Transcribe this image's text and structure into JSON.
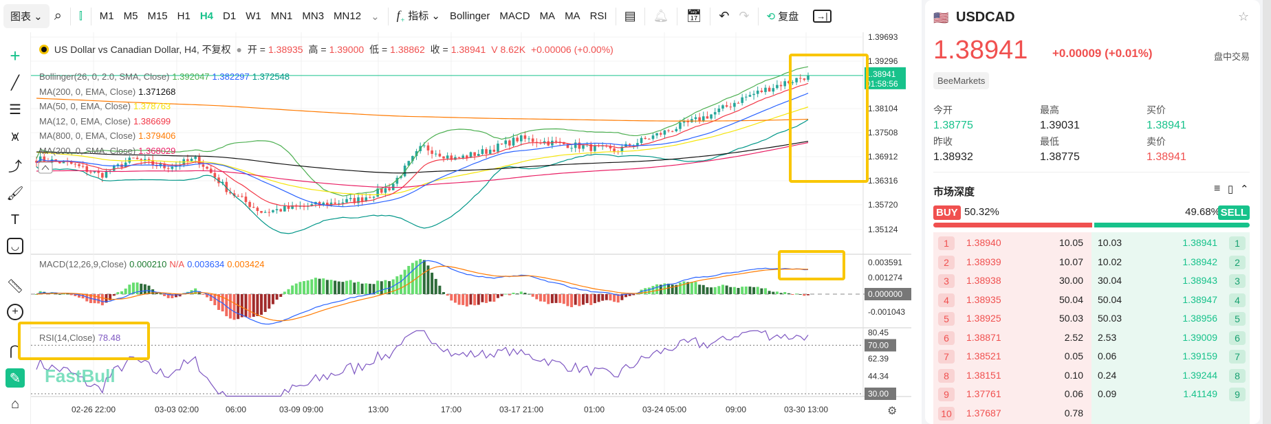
{
  "toolbar": {
    "chart_menu": "图表 ⌄",
    "timeframes": [
      "M1",
      "M5",
      "M15",
      "H1",
      "H4",
      "D1",
      "W1",
      "MN1",
      "MN3",
      "MN12"
    ],
    "active": "H4",
    "indicators_label": "指标 ⌄",
    "quick_indicators": [
      "Bollinger",
      "MACD",
      "MA",
      "MA",
      "RSI"
    ],
    "replay_label": "复盘"
  },
  "legend": {
    "title": "US Dollar vs Canadian Dollar, H4, 不复权",
    "open_label": "开 =",
    "open": "1.38935",
    "high_label": "高 =",
    "high": "1.39000",
    "low_label": "低 =",
    "low": "1.38862",
    "close_label": "收 =",
    "close": "1.38941",
    "volume": "V 8.62K",
    "change": "+0.00006 (+0.00%)",
    "indicators": [
      {
        "name": "Bollinger(26, 0, 2.0, SMA, Close)",
        "values": [
          "1.392047",
          "1.382297",
          "1.372548"
        ],
        "colors": [
          "#4caf50",
          "#2962ff",
          "#009688"
        ]
      },
      {
        "name": "MA(200, 0, EMA, Close)",
        "values": [
          "1.371268"
        ],
        "colors": [
          "#111111"
        ]
      },
      {
        "name": "MA(50, 0, EMA, Close)",
        "values": [
          "1.378763"
        ],
        "colors": [
          "#f5e50a"
        ]
      },
      {
        "name": "MA(12, 0, EMA, Close)",
        "values": [
          "1.386699"
        ],
        "colors": [
          "#f23645"
        ]
      },
      {
        "name": "MA(800, 0, EMA, Close)",
        "values": [
          "1.379406"
        ],
        "colors": [
          "#ff7a00"
        ]
      },
      {
        "name": "MA(200, 0, SMA, Close)",
        "values": [
          "1.368029"
        ],
        "colors": [
          "#e91e63"
        ]
      }
    ]
  },
  "price_axis": [
    "1.39693",
    "1.39296",
    "1.38104",
    "1.37508",
    "1.36912",
    "1.36316",
    "1.35720",
    "1.35124"
  ],
  "last_price": {
    "value": "1.38941",
    "countdown": "01:58:56"
  },
  "macd": {
    "label": "MACD(12,26,9,Close)",
    "hist": "0.000210",
    "na": "N/A",
    "macd": "0.003634",
    "signal": "0.003424",
    "axis": [
      "0.003591",
      "0.001274",
      "0.000000",
      "-0.001043"
    ]
  },
  "rsi": {
    "label": "RSI(14,Close)",
    "value": "78.48",
    "axis": [
      "80.45",
      "70.00",
      "62.39",
      "44.34",
      "30.00"
    ]
  },
  "time_axis": [
    "02-26 22:00",
    "03-03 02:00",
    "06:00",
    "03-09 09:00",
    "13:00",
    "17:00",
    "03-17 21:00",
    "01:00",
    "03-24 05:00",
    "09:00",
    "03-30 13:00"
  ],
  "watermark": "FastBull",
  "chart_data": {
    "type": "candlestick",
    "close_path": [
      1.3687,
      1.3677,
      1.3647,
      1.3687,
      1.3667,
      1.3687,
      1.3606,
      1.3556,
      1.3566,
      1.3576,
      1.3586,
      1.3617,
      1.3718,
      1.3687,
      1.3707,
      1.3738,
      1.3728,
      1.3718,
      1.3707,
      1.3738,
      1.3768,
      1.3798,
      1.3839,
      1.3869,
      1.3894
    ],
    "colors": {
      "up": "#26a69a",
      "down": "#ef5350"
    }
  },
  "panel": {
    "symbol": "USDCAD",
    "price": "1.38941",
    "change": "+0.00009",
    "change_pct": "(+0.01%)",
    "session": "盘中交易",
    "broker": "BeeMarkets",
    "stats": [
      {
        "label": "今开",
        "value": "1.38775",
        "color": "#17c28b"
      },
      {
        "label": "最高",
        "value": "1.39031",
        "color": "#222"
      },
      {
        "label": "买价",
        "value": "1.38941",
        "color": "#17c28b"
      },
      {
        "label": "昨收",
        "value": "1.38932",
        "color": "#222"
      },
      {
        "label": "最低",
        "value": "1.38775",
        "color": "#222"
      },
      {
        "label": "卖价",
        "value": "1.38941",
        "color": "#f0504f"
      }
    ],
    "depth_title": "市场深度",
    "buy_label": "BUY",
    "buy_pct": "50.32%",
    "sell_label": "SELL",
    "sell_pct": "49.68%",
    "buy_ratio": 50.32,
    "bids": [
      [
        "1",
        "1.38940",
        "10.05"
      ],
      [
        "2",
        "1.38939",
        "10.07"
      ],
      [
        "3",
        "1.38938",
        "30.00"
      ],
      [
        "4",
        "1.38935",
        "50.04"
      ],
      [
        "5",
        "1.38925",
        "50.03"
      ],
      [
        "6",
        "1.38871",
        "2.52"
      ],
      [
        "7",
        "1.38521",
        "0.05"
      ],
      [
        "8",
        "1.38151",
        "0.10"
      ],
      [
        "9",
        "1.37761",
        "0.06"
      ],
      [
        "10",
        "1.37687",
        "0.78"
      ]
    ],
    "asks": [
      [
        "10.03",
        "1.38941",
        "1"
      ],
      [
        "10.02",
        "1.38942",
        "2"
      ],
      [
        "30.04",
        "1.38943",
        "3"
      ],
      [
        "50.04",
        "1.38947",
        "4"
      ],
      [
        "50.03",
        "1.38956",
        "5"
      ],
      [
        "2.53",
        "1.39009",
        "6"
      ],
      [
        "0.06",
        "1.39159",
        "7"
      ],
      [
        "0.24",
        "1.39244",
        "8"
      ],
      [
        "0.09",
        "1.41149",
        "9"
      ]
    ]
  }
}
